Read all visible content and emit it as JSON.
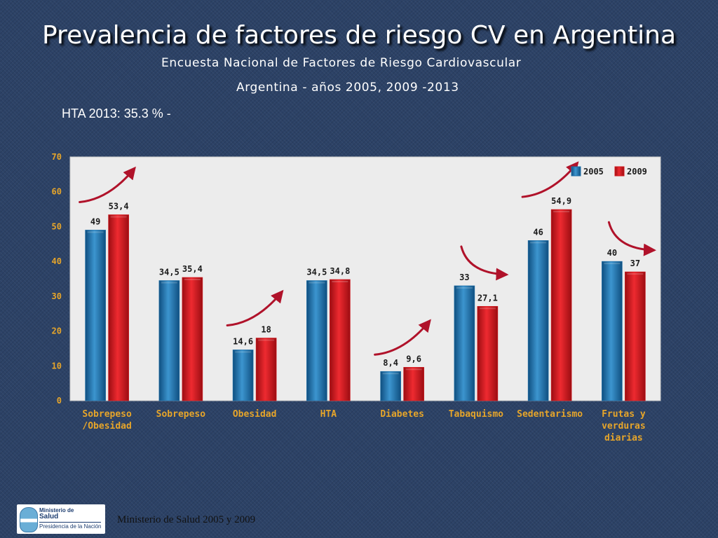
{
  "slide": {
    "title": "Prevalencia de factores de riesgo CV en Argentina",
    "subtitle": "Encuesta Nacional de Factores de Riesgo Cardiovascular",
    "subtitle2": "Argentina - años 2005, 2009 -2013",
    "note": "HTA 2013: 35.3 % -",
    "footer": "Ministerio de Salud 2005 y 2009"
  },
  "logo": {
    "line1": "Ministerio de",
    "line2": "Salud",
    "line3": "Presidencia de la Nación",
    "icon": "argentina-emblem-icon"
  },
  "colors": {
    "series_2005": "#1f6fa8",
    "series_2009": "#d0161c",
    "plot_background": "#ececec",
    "category_label": "#e6a52a",
    "trend_arrow": "#b0122a"
  },
  "chart_data": {
    "type": "bar",
    "categories": [
      "Sobrepeso\n/Obesidad",
      "Sobrepeso",
      "Obesidad",
      "HTA",
      "Diabetes",
      "Tabaquismo",
      "Sedentarismo",
      "Frutas y\nverduras\ndiarias"
    ],
    "series": [
      {
        "name": "2005",
        "values": [
          49,
          34.5,
          14.6,
          34.5,
          8.4,
          33,
          46,
          40
        ],
        "labels": [
          "49",
          "34,5",
          "14,6",
          "34,5",
          "8,4",
          "33",
          "46",
          "40"
        ]
      },
      {
        "name": "2009",
        "values": [
          53.4,
          35.4,
          18,
          34.8,
          9.6,
          27.1,
          54.9,
          37
        ],
        "labels": [
          "53,4",
          "35,4",
          "18",
          "34,8",
          "9,6",
          "27,1",
          "54,9",
          "37"
        ]
      }
    ],
    "ylim": [
      0,
      70
    ],
    "yticks": [
      0,
      10,
      20,
      30,
      40,
      50,
      60,
      70
    ],
    "grid": false,
    "legend": "top-right",
    "trend_arrows": [
      "up",
      "none",
      "up",
      "none",
      "up",
      "down",
      "up",
      "down"
    ]
  }
}
